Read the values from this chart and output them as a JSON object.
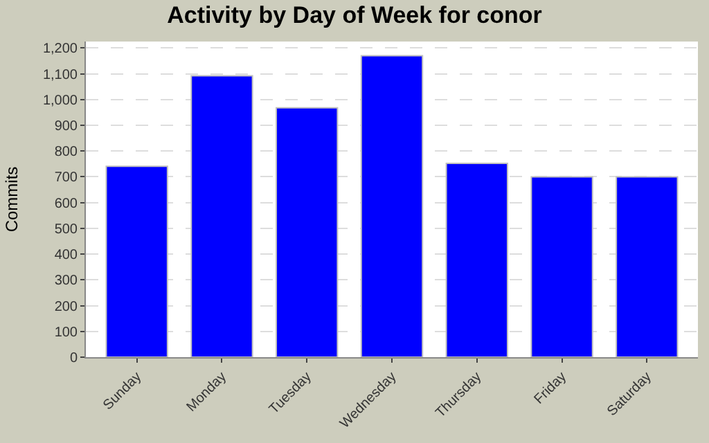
{
  "chart_data": {
    "type": "bar",
    "title": "Activity by Day of Week for conor",
    "ylabel": "Commits",
    "categories": [
      "Sunday",
      "Monday",
      "Tuesday",
      "Wednesday",
      "Thursday",
      "Friday",
      "Saturday"
    ],
    "values": [
      741,
      1092,
      968,
      1170,
      752,
      700,
      700
    ],
    "color": "#0000ff",
    "ylim": [
      0,
      1225
    ],
    "yticks": [
      0,
      100,
      200,
      300,
      400,
      500,
      600,
      700,
      800,
      900,
      {
        "value": 1000,
        "label": "1,000"
      },
      {
        "value": 1100,
        "label": "1,100"
      },
      {
        "value": 1200,
        "label": "1,200"
      }
    ],
    "grid": "y",
    "legend": false
  }
}
